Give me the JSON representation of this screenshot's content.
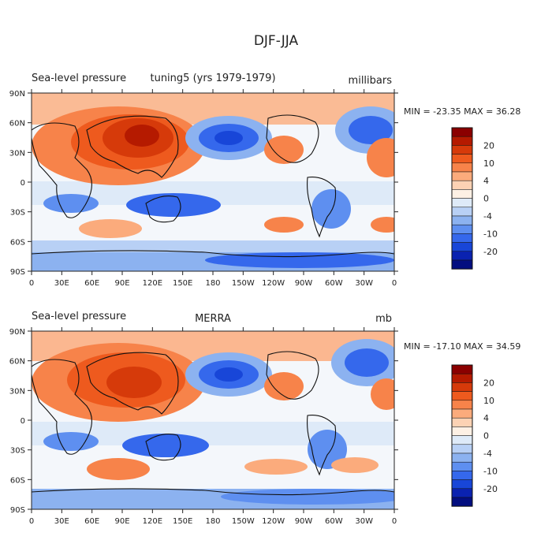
{
  "figure_title": "DJF-JJA",
  "panels": [
    {
      "left_title": "Sea-level pressure",
      "center_title": "tuning5 (yrs 1979-1979)",
      "right_title": "millibars",
      "stats": "MIN = -23.35  MAX =  36.28"
    },
    {
      "left_title": "Sea-level pressure",
      "center_title": "MERRA",
      "right_title": "mb",
      "stats": "MIN = -17.10  MAX =  34.59"
    }
  ],
  "lon_labels": [
    "0",
    "30E",
    "60E",
    "90E",
    "120E",
    "150E",
    "180",
    "150W",
    "120W",
    "90W",
    "60W",
    "30W",
    "0"
  ],
  "lat_labels": [
    "90N",
    "60N",
    "30N",
    "0",
    "30S",
    "60S",
    "90S"
  ],
  "colorbar": {
    "colors": [
      "#8b0000",
      "#b51a00",
      "#d63a0a",
      "#ee5a1e",
      "#f7834a",
      "#fbab7c",
      "#fcd2b4",
      "#fdf0e4",
      "#deeaf8",
      "#b8d0f5",
      "#8cb2f0",
      "#5e8ff0",
      "#3568ec",
      "#1846d8",
      "#0a22b0",
      "#030e80"
    ],
    "labels": [
      "20",
      "10",
      "4",
      "0",
      "-4",
      "-10",
      "-20"
    ]
  }
}
